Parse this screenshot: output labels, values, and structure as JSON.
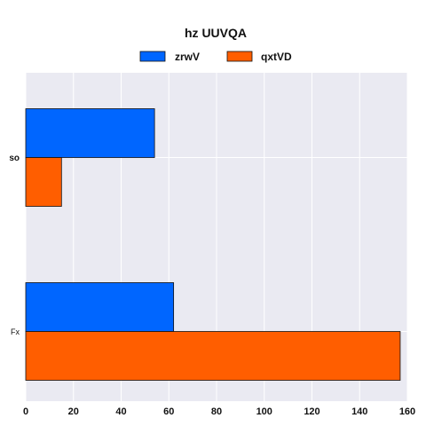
{
  "chart_data": {
    "type": "bar",
    "orientation": "horizontal",
    "title": "hz UUVQA",
    "categories": [
      "so",
      "Fx"
    ],
    "series": [
      {
        "name": "zrwV",
        "values": [
          54,
          62
        ],
        "color": "#0066ff"
      },
      {
        "name": "qxtVD",
        "values": [
          15,
          157
        ],
        "color": "#ff5e00"
      }
    ],
    "xlim": [
      0,
      160
    ],
    "xticks": [
      0,
      20,
      40,
      60,
      80,
      100,
      120,
      140,
      160
    ],
    "grid": true,
    "legend_position": "top-center",
    "plot_background": "#eaeaf2",
    "grid_color": "#ffffff"
  }
}
